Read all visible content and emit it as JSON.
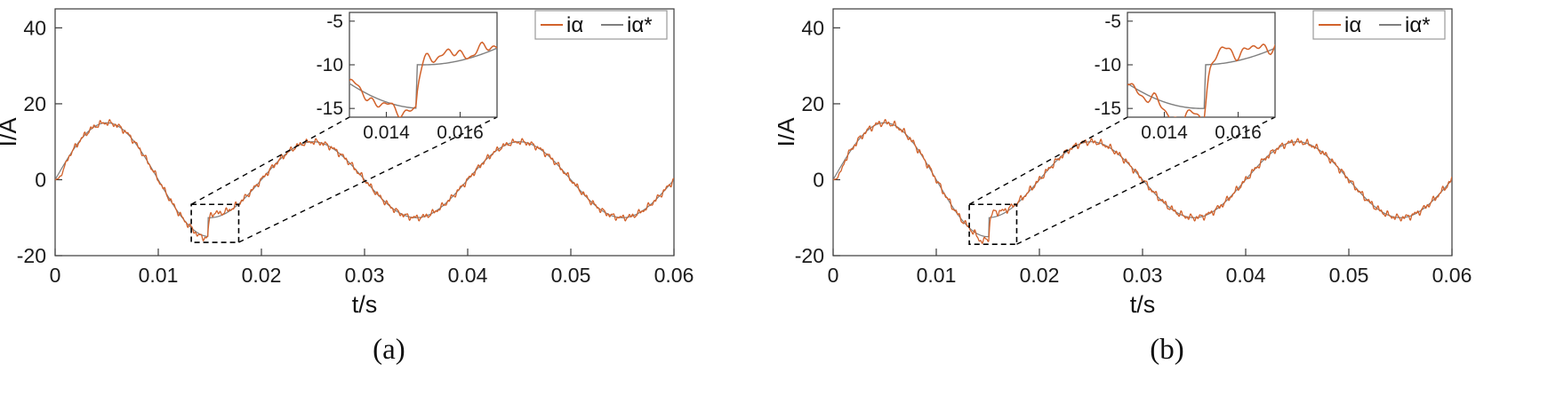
{
  "figure": {
    "description": "Two-panel comparison of alpha-axis current tracking, measured vs reference",
    "captions": [
      "(a)",
      "(b)"
    ]
  },
  "chart_data": [
    {
      "type": "line",
      "caption": "(a)",
      "xlabel": "t/s",
      "ylabel": "I/A",
      "xlim": [
        0,
        0.06
      ],
      "ylim": [
        -20,
        45
      ],
      "x_ticks": [
        0,
        0.01,
        0.02,
        0.03,
        0.04,
        0.05,
        0.06
      ],
      "x_tick_labels": [
        "0",
        "0.01",
        "0.02",
        "0.03",
        "0.04",
        "0.05",
        "0.06"
      ],
      "y_ticks": [
        -20,
        0,
        20,
        40
      ],
      "y_tick_labels": [
        "-20",
        "0",
        "20",
        "40"
      ],
      "legend": {
        "position": "top-right",
        "entries": [
          {
            "label": "iα",
            "color": "#d2622b"
          },
          {
            "label": "iα*",
            "color": "#7f7f7f"
          }
        ]
      },
      "series": [
        {
          "name": "iα*",
          "role": "reference",
          "color": "#7f7f7f"
        },
        {
          "name": "iα",
          "role": "measured",
          "color": "#d2622b"
        }
      ],
      "waveform": {
        "fundamental_period_s": 0.02,
        "amplitude_before_step_A": 15,
        "amplitude_after_step_A": 10,
        "step_time_s": 0.0148,
        "startup_ramp_s": 0.0012,
        "ripple_freqs_hz": [
          1150,
          2050,
          3350
        ],
        "ripple_amps_A": [
          0.45,
          0.3,
          0.25
        ],
        "ripple_phases": [
          0.7,
          2.1,
          4.2
        ],
        "sag_depth_A": 0.6,
        "overshoot_A": 2.0
      },
      "inset": {
        "xlim": [
          0.013,
          0.017
        ],
        "ylim": [
          -16,
          -4
        ],
        "x_ticks": [
          0.014,
          0.016
        ],
        "x_tick_labels": [
          "0.014",
          "0.016"
        ],
        "y_ticks": [
          -5,
          -10,
          -15
        ],
        "y_tick_labels": [
          "-5",
          "-10",
          "-15"
        ]
      },
      "zoom_rect": {
        "x": [
          0.0132,
          0.0178
        ],
        "y": [
          -16.5,
          -6.5
        ]
      }
    },
    {
      "type": "line",
      "caption": "(b)",
      "xlabel": "t/s",
      "ylabel": "I/A",
      "xlim": [
        0,
        0.06
      ],
      "ylim": [
        -20,
        45
      ],
      "x_ticks": [
        0,
        0.01,
        0.02,
        0.03,
        0.04,
        0.05,
        0.06
      ],
      "x_tick_labels": [
        "0",
        "0.01",
        "0.02",
        "0.03",
        "0.04",
        "0.05",
        "0.06"
      ],
      "y_ticks": [
        -20,
        0,
        20,
        40
      ],
      "y_tick_labels": [
        "-20",
        "0",
        "20",
        "40"
      ],
      "legend": {
        "position": "top-right",
        "entries": [
          {
            "label": "iα",
            "color": "#d2622b"
          },
          {
            "label": "iα*",
            "color": "#7f7f7f"
          }
        ]
      },
      "series": [
        {
          "name": "iα*",
          "role": "reference",
          "color": "#7f7f7f"
        },
        {
          "name": "iα",
          "role": "measured",
          "color": "#d2622b"
        }
      ],
      "waveform": {
        "fundamental_period_s": 0.02,
        "amplitude_before_step_A": 15,
        "amplitude_after_step_A": 10,
        "step_time_s": 0.0151,
        "startup_ramp_s": 0.0012,
        "ripple_freqs_hz": [
          1150,
          2050,
          3350
        ],
        "ripple_amps_A": [
          0.5,
          0.33,
          0.27
        ],
        "ripple_phases": [
          2.3,
          0.4,
          1.6
        ],
        "sag_depth_A": 1.4,
        "overshoot_A": 2.3
      },
      "inset": {
        "xlim": [
          0.013,
          0.017
        ],
        "ylim": [
          -16,
          -4
        ],
        "x_ticks": [
          0.014,
          0.016
        ],
        "x_tick_labels": [
          "0.014",
          "0.016"
        ],
        "y_ticks": [
          -5,
          -10,
          -15
        ],
        "y_tick_labels": [
          "-5",
          "-10",
          "-15"
        ]
      },
      "zoom_rect": {
        "x": [
          0.0132,
          0.0178
        ],
        "y": [
          -17,
          -6.5
        ]
      }
    }
  ]
}
